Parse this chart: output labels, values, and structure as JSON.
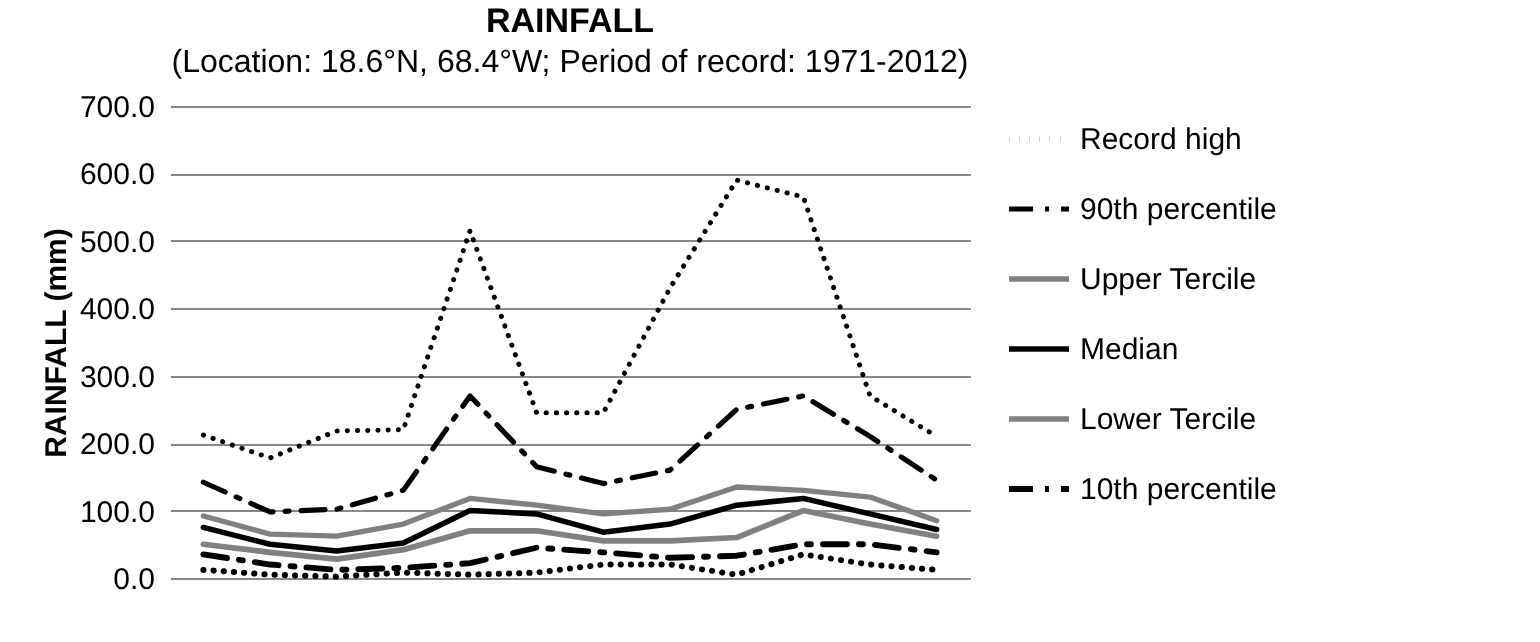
{
  "chart_data": {
    "type": "line",
    "title": "RAINFALL",
    "subtitle": "(Location: 18.6°N, 68.4°W; Period of record: 1971-2012)",
    "ylabel": "RAINFALL (mm)",
    "categories": [
      null,
      null,
      null,
      null,
      null,
      null,
      null,
      null,
      null,
      null,
      null,
      null
    ],
    "series": [
      {
        "name": "Record high",
        "color": "#000000",
        "line_style": "dotted",
        "values": [
          212,
          178,
          218,
          220,
          515,
          245,
          245,
          430,
          590,
          565,
          270,
          210
        ]
      },
      {
        "name": "90th percentile",
        "color": "#000000",
        "line_style": "dashed",
        "values": [
          142,
          98,
          102,
          130,
          270,
          165,
          140,
          160,
          250,
          270,
          210,
          145
        ]
      },
      {
        "name": "Upper Tercile",
        "color": "#808080",
        "line_style": "solid",
        "values": [
          92,
          65,
          62,
          80,
          118,
          108,
          95,
          102,
          135,
          130,
          120,
          85
        ]
      },
      {
        "name": "Median",
        "color": "#000000",
        "line_style": "solid",
        "values": [
          75,
          50,
          40,
          52,
          100,
          95,
          68,
          80,
          108,
          118,
          95,
          72
        ]
      },
      {
        "name": "Lower Tercile",
        "color": "#808080",
        "line_style": "solid",
        "values": [
          50,
          38,
          28,
          42,
          70,
          70,
          55,
          55,
          60,
          100,
          80,
          62
        ]
      },
      {
        "name": "10th percentile",
        "color": "#000000",
        "line_style": "dashed",
        "values": [
          35,
          20,
          12,
          15,
          22,
          45,
          38,
          30,
          33,
          50,
          50,
          38
        ]
      },
      {
        "color": "#000000",
        "line_style": "dotted",
        "values": [
          12,
          5,
          2,
          8,
          5,
          8,
          20,
          20,
          5,
          35,
          20,
          12
        ]
      }
    ],
    "ylim": [
      0,
      700
    ],
    "yticks": [
      {
        "value": 0,
        "label": "0.0"
      },
      {
        "value": 100,
        "label": "100.0"
      },
      {
        "value": 200,
        "label": "200.0"
      },
      {
        "value": 300,
        "label": "300.0"
      },
      {
        "value": 400,
        "label": "400.0"
      },
      {
        "value": 500,
        "label": "500.0"
      },
      {
        "value": 600,
        "label": "600.0"
      },
      {
        "value": 700,
        "label": "700.0"
      }
    ],
    "grid": "y",
    "legend": "right",
    "tick_labels": "y"
  }
}
